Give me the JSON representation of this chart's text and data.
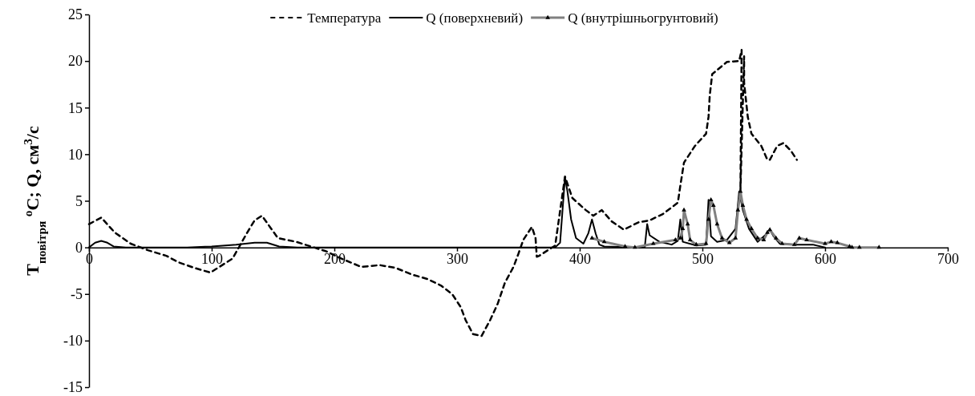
{
  "chart_data": {
    "type": "line",
    "ylabel": "T$_{повітря}$ $^{o}$C; Q, см$^{3}$/с",
    "xlim": [
      0,
      700
    ],
    "xticks": [
      0,
      100,
      200,
      300,
      400,
      500,
      600,
      700
    ],
    "ylim": [
      -15,
      25
    ],
    "yticks": [
      -15,
      -10,
      -5,
      0,
      5,
      10,
      15,
      20,
      25
    ],
    "grid": false,
    "legend": "top",
    "series": [
      {
        "name": "Температура",
        "color": "#000000",
        "line_style": "dashed",
        "marker": "none",
        "x": [
          0,
          10,
          21,
          34,
          48,
          63,
          73,
          86,
          99,
          117,
          129,
          135,
          141,
          148,
          154,
          169,
          176,
          193,
          204,
          222,
          237,
          250,
          263,
          276,
          287,
          296,
          303,
          307,
          313,
          320,
          327,
          333,
          339,
          346,
          350,
          354,
          361,
          364,
          365,
          367,
          380,
          388,
          394,
          405,
          411,
          418,
          426,
          436,
          448,
          457,
          468,
          480,
          482,
          485,
          494,
          503,
          505,
          506,
          508,
          520,
          530,
          532,
          531,
          534,
          534,
          537,
          540,
          548,
          553,
          555,
          561,
          566,
          572,
          577
        ],
        "values": [
          2.5,
          3.2,
          1.6,
          0.4,
          -0.3,
          -0.9,
          -1.6,
          -2.2,
          -2.7,
          -1.2,
          1.6,
          2.9,
          3.4,
          2.1,
          1.0,
          0.6,
          0.3,
          -0.4,
          -1.1,
          -2.1,
          -1.9,
          -2.2,
          -2.9,
          -3.4,
          -4.1,
          -5.0,
          -6.4,
          -7.8,
          -9.3,
          -9.5,
          -7.8,
          -6.1,
          -3.8,
          -2.1,
          -0.7,
          0.8,
          2.2,
          1.0,
          -1,
          -0.9,
          0.2,
          7.6,
          5.3,
          4.0,
          3.4,
          4.0,
          2.8,
          1.9,
          2.7,
          2.9,
          3.6,
          4.8,
          6.6,
          9.1,
          10.9,
          12.2,
          14.0,
          16.3,
          18.6,
          19.9,
          20.0,
          21.2,
          6.0,
          20.5,
          17.7,
          14.0,
          12.2,
          10.9,
          9.4,
          9.4,
          10.9,
          11.2,
          10.4,
          9.4
        ]
      },
      {
        "name": "Q (поверхневий)",
        "color": "#000000",
        "line_style": "solid",
        "marker": "none",
        "x": [
          0,
          5,
          10,
          15,
          20,
          30,
          80,
          100,
          120,
          135,
          145,
          155,
          170,
          380,
          384,
          386,
          388,
          390,
          393,
          397,
          403,
          407,
          410,
          413,
          416,
          420,
          453,
          455,
          457,
          465,
          475,
          480,
          482,
          484,
          495,
          503,
          505,
          507,
          512,
          520,
          527,
          530,
          533,
          538,
          545,
          552,
          555,
          558,
          563,
          575,
          590,
          600
        ],
        "values": [
          0,
          0.5,
          0.7,
          0.5,
          0.1,
          0,
          0,
          0.1,
          0.3,
          0.5,
          0.5,
          0.1,
          0,
          0,
          0.5,
          4,
          7.5,
          6,
          3,
          1,
          0.4,
          1.5,
          3,
          1.5,
          0.3,
          0.1,
          0,
          2.5,
          1.3,
          0.6,
          0.3,
          0.7,
          3.0,
          0.6,
          0.2,
          0.3,
          5.1,
          1.2,
          0.6,
          0.8,
          2,
          6.0,
          4,
          2,
          0.6,
          1.4,
          1.9,
          1.2,
          0.4,
          0.3,
          0.3,
          0
        ]
      },
      {
        "name": "Q (внутрішньогрунтовий)",
        "color": "#808080",
        "line_style": "solid",
        "marker": "triangle",
        "x": [
          410,
          420,
          437,
          445,
          460,
          478,
          482,
          484,
          485,
          488,
          490,
          495,
          503,
          505,
          507,
          509,
          512,
          516,
          522,
          527,
          529,
          531,
          533,
          536,
          540,
          545,
          550,
          553,
          555,
          560,
          565,
          575,
          579,
          585,
          600,
          605,
          610,
          620,
          622,
          628,
          644
        ],
        "values": [
          1.0,
          0.6,
          0.1,
          0,
          0.4,
          0.8,
          1.0,
          2,
          4.0,
          2.5,
          0.8,
          0.3,
          0.4,
          3,
          5.1,
          4.5,
          2.5,
          1,
          0.5,
          1,
          4,
          6,
          4.5,
          3,
          2,
          1,
          0.8,
          1.6,
          1.9,
          1,
          0.4,
          0.3,
          1.0,
          0.8,
          0.4,
          0.6,
          0.5,
          0.1,
          0,
          0,
          0
        ]
      }
    ]
  }
}
